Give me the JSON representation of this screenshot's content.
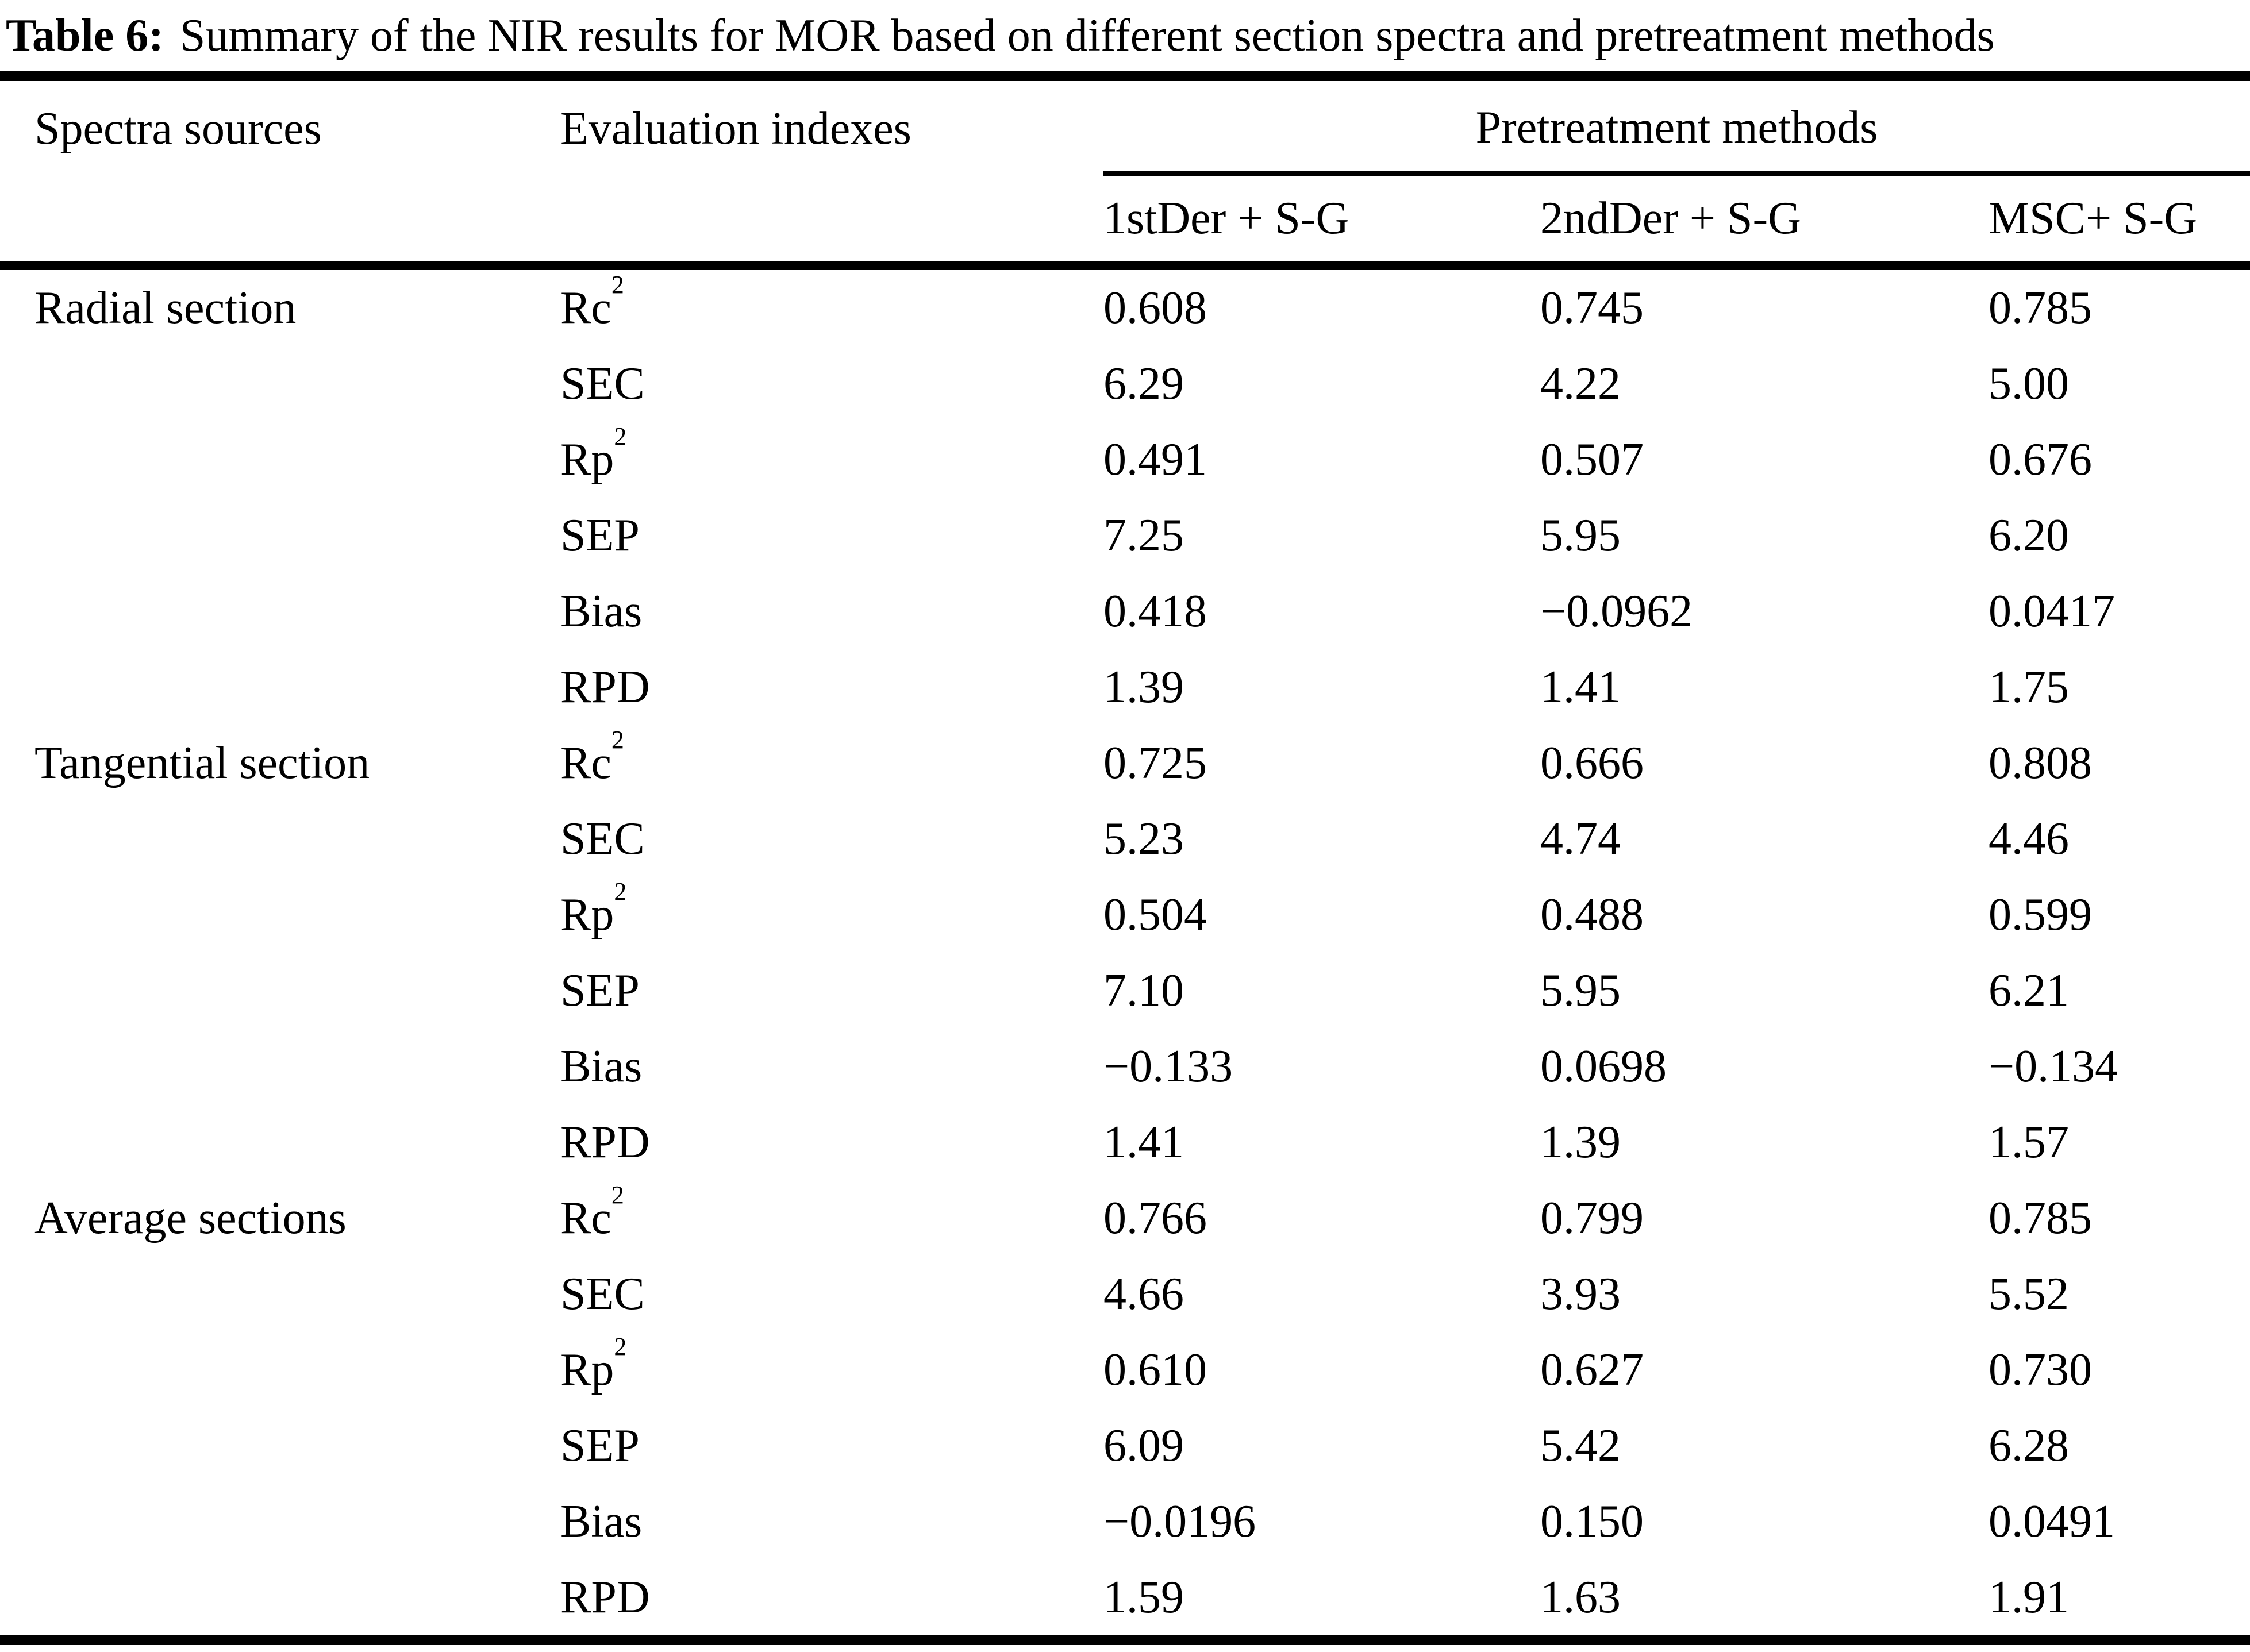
{
  "title": {
    "label": "Table 6:",
    "text": "Summary of the NIR results for MOR based on different section spectra and pretreatment methods"
  },
  "table": {
    "col_headers": {
      "spectra_sources": "Spectra sources",
      "evaluation_indexes": "Evaluation indexes",
      "group": "Pretreatment methods"
    },
    "method_headers": [
      "1stDer + S-G",
      "2ndDer + S-G",
      "MSC+ S-G"
    ],
    "sections": [
      {
        "source": "Radial section",
        "rows": [
          {
            "index": "Rc",
            "sup": "2",
            "values": [
              "0.608",
              "0.745",
              "0.785"
            ]
          },
          {
            "index": "SEC",
            "sup": "",
            "values": [
              "6.29",
              "4.22",
              "5.00"
            ]
          },
          {
            "index": "Rp",
            "sup": "2",
            "values": [
              "0.491",
              "0.507",
              "0.676"
            ]
          },
          {
            "index": "SEP",
            "sup": "",
            "values": [
              "7.25",
              "5.95",
              "6.20"
            ]
          },
          {
            "index": "Bias",
            "sup": "",
            "values": [
              "0.418",
              "−0.0962",
              "0.0417"
            ]
          },
          {
            "index": "RPD",
            "sup": "",
            "values": [
              "1.39",
              "1.41",
              "1.75"
            ]
          }
        ]
      },
      {
        "source": "Tangential section",
        "rows": [
          {
            "index": "Rc",
            "sup": "2",
            "values": [
              "0.725",
              "0.666",
              "0.808"
            ]
          },
          {
            "index": "SEC",
            "sup": "",
            "values": [
              "5.23",
              "4.74",
              "4.46"
            ]
          },
          {
            "index": "Rp",
            "sup": "2",
            "values": [
              "0.504",
              "0.488",
              "0.599"
            ]
          },
          {
            "index": "SEP",
            "sup": "",
            "values": [
              "7.10",
              "5.95",
              "6.21"
            ]
          },
          {
            "index": "Bias",
            "sup": "",
            "values": [
              "−0.133",
              "0.0698",
              "−0.134"
            ]
          },
          {
            "index": "RPD",
            "sup": "",
            "values": [
              "1.41",
              "1.39",
              "1.57"
            ]
          }
        ]
      },
      {
        "source": "Average sections",
        "rows": [
          {
            "index": "Rc",
            "sup": "2",
            "values": [
              "0.766",
              "0.799",
              "0.785"
            ]
          },
          {
            "index": "SEC",
            "sup": "",
            "values": [
              "4.66",
              "3.93",
              "5.52"
            ]
          },
          {
            "index": "Rp",
            "sup": "2",
            "values": [
              "0.610",
              "0.627",
              "0.730"
            ]
          },
          {
            "index": "SEP",
            "sup": "",
            "values": [
              "6.09",
              "5.42",
              "6.28"
            ]
          },
          {
            "index": "Bias",
            "sup": "",
            "values": [
              "−0.0196",
              "0.150",
              "0.0491"
            ]
          },
          {
            "index": "RPD",
            "sup": "",
            "values": [
              "1.59",
              "1.63",
              "1.91"
            ]
          }
        ]
      }
    ]
  }
}
